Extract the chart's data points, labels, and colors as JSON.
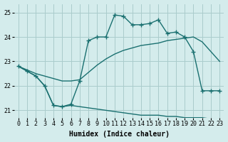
{
  "xlabel": "Humidex (Indice chaleur)",
  "bg_color": "#d4ecec",
  "grid_color": "#aacccc",
  "line_color": "#1a7070",
  "xlim": [
    -0.5,
    23.5
  ],
  "ylim": [
    20.7,
    25.35
  ],
  "yticks": [
    21,
    22,
    23,
    24,
    25
  ],
  "xticks": [
    0,
    1,
    2,
    3,
    4,
    5,
    6,
    7,
    8,
    9,
    10,
    11,
    12,
    13,
    14,
    15,
    16,
    17,
    18,
    19,
    20,
    21,
    22,
    23
  ],
  "line_marker_x": [
    0,
    1,
    2,
    3,
    4,
    5,
    6,
    7,
    8,
    9,
    10,
    11,
    12,
    13,
    14,
    15,
    16,
    17,
    18,
    19,
    20,
    21,
    22,
    23
  ],
  "line_marker_y": [
    22.8,
    22.6,
    22.4,
    22.0,
    21.2,
    21.15,
    21.25,
    22.2,
    23.85,
    24.0,
    24.0,
    24.9,
    24.85,
    24.5,
    24.5,
    24.55,
    24.7,
    24.15,
    24.2,
    24.0,
    23.4,
    21.8,
    21.8,
    21.8
  ],
  "line_top_x": [
    0,
    1,
    2,
    3,
    4,
    5,
    6,
    7,
    8,
    9,
    10,
    11,
    12,
    13,
    14,
    15,
    16,
    17,
    18,
    19,
    20,
    21,
    22,
    23
  ],
  "line_top_y": [
    22.8,
    22.65,
    22.5,
    22.4,
    22.3,
    22.2,
    22.2,
    22.25,
    22.55,
    22.85,
    23.1,
    23.3,
    23.45,
    23.55,
    23.65,
    23.7,
    23.75,
    23.85,
    23.9,
    23.95,
    24.0,
    23.8,
    23.4,
    23.0
  ],
  "line_bot_x": [
    0,
    1,
    2,
    3,
    4,
    5,
    6,
    7,
    8,
    9,
    10,
    11,
    12,
    13,
    14,
    15,
    16,
    17,
    18,
    19,
    20,
    21,
    22,
    23
  ],
  "line_bot_y": [
    22.8,
    22.6,
    22.4,
    22.0,
    21.2,
    21.15,
    21.2,
    21.15,
    21.1,
    21.05,
    21.0,
    20.95,
    20.9,
    20.85,
    20.8,
    20.8,
    20.8,
    20.75,
    20.75,
    20.7,
    20.7,
    20.7,
    20.65,
    20.6
  ]
}
